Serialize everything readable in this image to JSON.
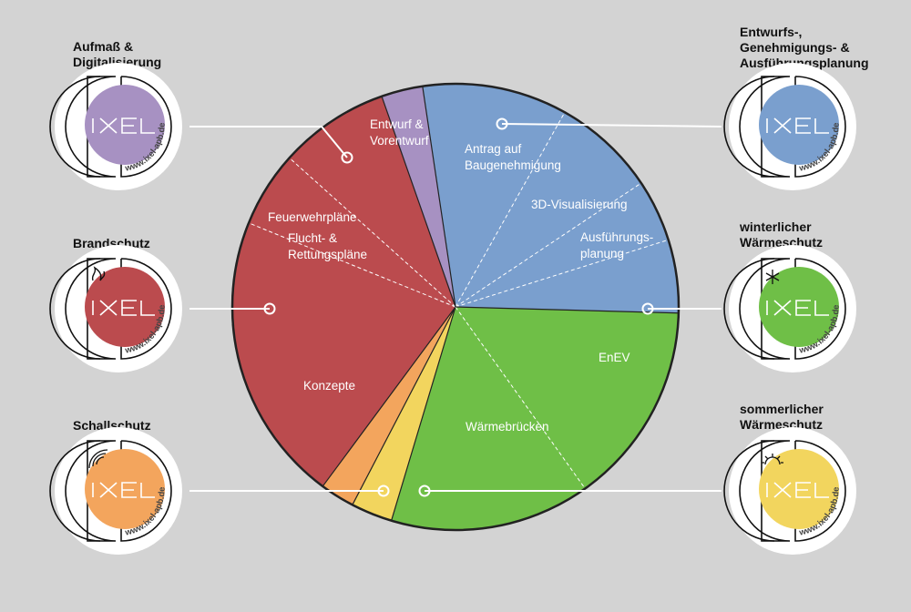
{
  "chart_data": {
    "type": "pie",
    "title": "",
    "slices": [
      {
        "label": "Entwurf & Vorentwurf",
        "value": 10.5,
        "color": "#7a9fce",
        "group": "Entwurfs-, Genehmigungs- & Ausführungsplanung"
      },
      {
        "label": "Antrag auf Baugenehmigung",
        "value": 7.5,
        "color": "#7a9fce",
        "group": "Entwurfs-, Genehmigungs- & Ausführungsplanung"
      },
      {
        "label": "3D-Visualisierung",
        "value": 4.5,
        "color": "#7a9fce",
        "group": "Entwurfs-, Genehmigungs- & Ausführungsplanung"
      },
      {
        "label": "Ausführungsplanung",
        "value": 5.3,
        "color": "#7a9fce",
        "group": "Entwurfs-, Genehmigungs- & Ausführungsplanung"
      },
      {
        "label": "EnEV",
        "value": 14.7,
        "color": "#6fbf47",
        "group": "winterlicher Wärmeschutz"
      },
      {
        "label": "Wärmebrücken",
        "value": 14.5,
        "color": "#6fbf47",
        "group": "winterlicher Wärmeschutz"
      },
      {
        "label": "",
        "value": 3.0,
        "color": "#f2d55e",
        "group": "sommerlicher Wärmeschutz"
      },
      {
        "label": "",
        "value": 2.5,
        "color": "#f3a55d",
        "group": "Schallschutz"
      },
      {
        "label": "Konzepte",
        "value": 21.0,
        "color": "#bb4b4e",
        "group": "Brandschutz"
      },
      {
        "label": "Flucht- & Rettungspläne",
        "value": 5.5,
        "color": "#bb4b4e",
        "group": "Brandschutz"
      },
      {
        "label": "Feuerwehrpläne",
        "value": 8.0,
        "color": "#bb4b4e",
        "group": "Brandschutz"
      },
      {
        "label": "",
        "value": 3.0,
        "color": "#a791c2",
        "group": "Aufmaß & Digitalisierung"
      }
    ]
  },
  "categories": [
    {
      "id": "aufmass",
      "title_lines": [
        "Aufmaß &",
        "Digitalisierung"
      ],
      "color": "#a791c2",
      "icon": "none"
    },
    {
      "id": "brandschutz",
      "title_lines": [
        "Brandschutz"
      ],
      "color": "#bb4b4e",
      "icon": "flame-icon"
    },
    {
      "id": "schallschutz",
      "title_lines": [
        "Schallschutz"
      ],
      "color": "#f3a55d",
      "icon": "sound-wave-icon"
    },
    {
      "id": "planung",
      "title_lines": [
        "Entwurfs-,",
        "Genehmigungs- &",
        "Ausführungsplanung"
      ],
      "color": "#7a9fce",
      "icon": "none"
    },
    {
      "id": "winter",
      "title_lines": [
        "winterlicher",
        "Wärmeschutz"
      ],
      "color": "#6fbf47",
      "icon": "snowflake-icon"
    },
    {
      "id": "sommer",
      "title_lines": [
        "sommerlicher",
        "Wärmeschutz"
      ],
      "color": "#f2d55e",
      "icon": "sun-icon"
    }
  ],
  "badge": {
    "logo": "IXEL",
    "url": "www.ixel-apb.de"
  }
}
